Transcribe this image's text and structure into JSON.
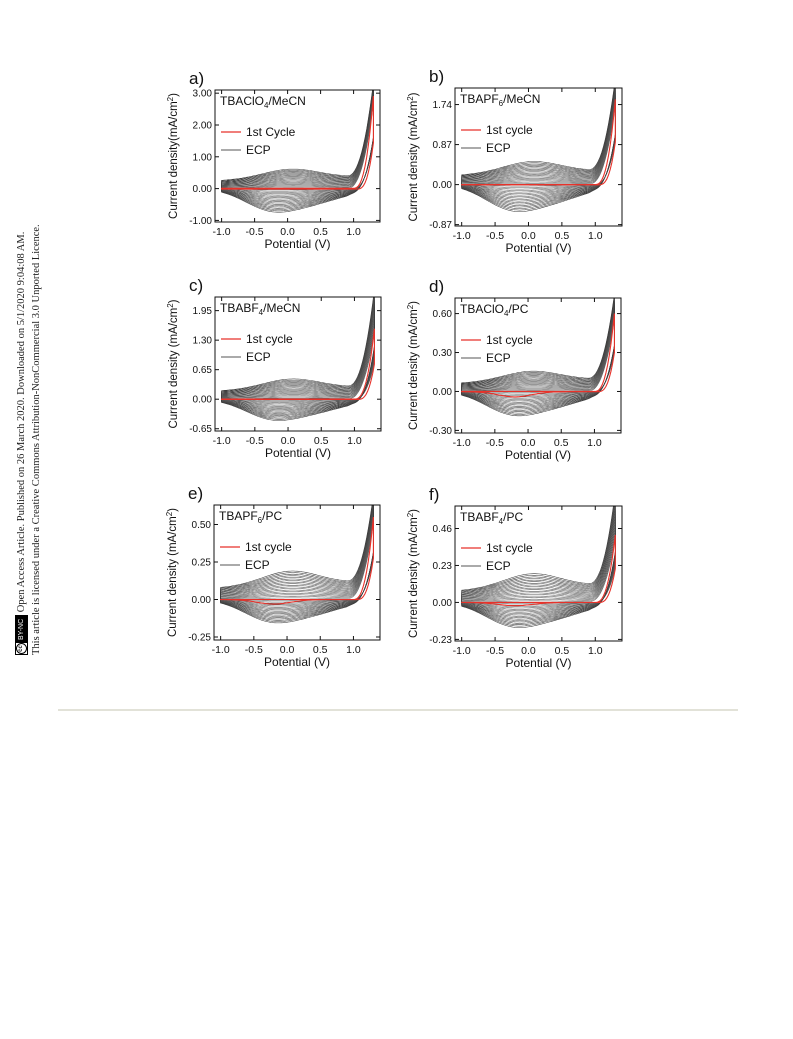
{
  "sidebar": {
    "line1_prefix": "Open Access Article. Published on 26 March 2020. Downloaded on 5/1/2020 9:04:08 AM.",
    "line2": "This article is licensed under a Creative Commons Attribution-NonCommercial 3.0 Unported Licence.",
    "cc_badge_label": "BY-NC",
    "cc_icon_text": "cc"
  },
  "colors": {
    "first_cycle": "#e8322a",
    "ecp": "#222222"
  },
  "chart_data": [
    {
      "type": "line",
      "panel_label": "a)",
      "electrolyte_main": "TBAClO",
      "electrolyte_sub": "4",
      "electrolyte_rest": "/MeCN",
      "xlabel": "Potential (V)",
      "ylabel": "Current density(mA/cm",
      "ylabel_sup": "2",
      "ylabel_end": ")",
      "xlim": [
        -1.1,
        1.4
      ],
      "ylim": [
        -1.05,
        3.1
      ],
      "xticks": [
        -1.0,
        -0.5,
        0.0,
        0.5,
        1.0
      ],
      "xtick_labels": [
        "-1.0",
        "-0.5",
        "0.0",
        "0.5",
        "1.0"
      ],
      "yticks": [
        -1.0,
        0.0,
        1.0,
        2.0,
        3.0
      ],
      "ytick_labels": [
        "-1.00",
        "0.00",
        "1.00",
        "2.00",
        "3.00"
      ],
      "legend": [
        "1st Cycle",
        "ECP"
      ],
      "legend_position": "upper-left",
      "series": [
        {
          "name": "1st Cycle",
          "x_start": -1.0,
          "x_end": 1.3,
          "anodic_offset": 0.08,
          "cathodic_offset": -0.12,
          "peak": 2.9,
          "hump": 0.0
        },
        {
          "name": "ECP",
          "cycles": 18,
          "x_start": -1.0,
          "x_end": 1.3,
          "peak_max": 2.95,
          "anodic_hump_max": 0.55,
          "cathodic_trough_min": -0.95
        }
      ]
    },
    {
      "type": "line",
      "panel_label": "b)",
      "electrolyte_main": "TBAPF",
      "electrolyte_sub": "6",
      "electrolyte_rest": "/MeCN",
      "xlabel": "Potential (V)",
      "ylabel": "Current density (mA/cm",
      "ylabel_sup": "2",
      "ylabel_end": ")",
      "xlim": [
        -1.1,
        1.4
      ],
      "ylim": [
        -0.9,
        2.1
      ],
      "xticks": [
        -1.0,
        -0.5,
        0.0,
        0.5,
        1.0
      ],
      "xtick_labels": [
        "-1.0",
        "-0.5",
        "0.0",
        "0.5",
        "1.0"
      ],
      "yticks": [
        -0.87,
        0.0,
        0.87,
        1.74
      ],
      "ytick_labels": [
        "-0.87",
        "0.00",
        "0.87",
        "1.74"
      ],
      "legend": [
        "1st cycle",
        "ECP"
      ],
      "legend_position": "upper-left",
      "series": [
        {
          "name": "1st cycle",
          "x_start": -1.0,
          "x_end": 1.3,
          "anodic_offset": 0.03,
          "cathodic_offset": -0.05,
          "peak": 1.85,
          "hump": 0.0
        },
        {
          "name": "ECP",
          "cycles": 18,
          "x_start": -1.0,
          "x_end": 1.3,
          "peak_max": 2.0,
          "anodic_hump_max": 0.45,
          "cathodic_trough_min": -0.75
        }
      ]
    },
    {
      "type": "line",
      "panel_label": "c)",
      "electrolyte_main": "TBABF",
      "electrolyte_sub": "4",
      "electrolyte_rest": "/MeCN",
      "xlabel": "Potential (V)",
      "ylabel": "Current density (mA/cm",
      "ylabel_sup": "2",
      "ylabel_end": ")",
      "xlim": [
        -1.1,
        1.4
      ],
      "ylim": [
        -0.7,
        2.25
      ],
      "xticks": [
        -1.0,
        -0.5,
        0.0,
        0.5,
        1.0
      ],
      "xtick_labels": [
        "-1.0",
        "-0.5",
        "0.0",
        "0.5",
        "1.0"
      ],
      "yticks": [
        -0.65,
        0.0,
        0.65,
        1.3,
        1.95
      ],
      "ytick_labels": [
        "-0.65",
        "0.00",
        "0.65",
        "1.30",
        "1.95"
      ],
      "legend": [
        "1st cycle",
        "ECP"
      ],
      "legend_position": "upper-left",
      "series": [
        {
          "name": "1st cycle",
          "x_start": -1.0,
          "x_end": 1.3,
          "anodic_offset": 0.03,
          "cathodic_offset": -0.05,
          "peak": 1.55,
          "hump": 0.0
        },
        {
          "name": "ECP",
          "cycles": 18,
          "x_start": -1.0,
          "x_end": 1.3,
          "peak_max": 2.15,
          "anodic_hump_max": 0.4,
          "cathodic_trough_min": -0.6
        }
      ]
    },
    {
      "type": "line",
      "panel_label": "d)",
      "electrolyte_main": "TBAClO",
      "electrolyte_sub": "4",
      "electrolyte_rest": "/PC",
      "xlabel": "Potential (V)",
      "ylabel": "Current density (mA/cm",
      "ylabel_sup": "2",
      "ylabel_end": ")",
      "xlim": [
        -1.1,
        1.4
      ],
      "ylim": [
        -0.32,
        0.72
      ],
      "xticks": [
        -1.0,
        -0.5,
        0.0,
        0.5,
        1.0
      ],
      "xtick_labels": [
        "-1.0",
        "-0.5",
        "0.0",
        "0.5",
        "1.0"
      ],
      "yticks": [
        -0.3,
        0.0,
        0.3,
        0.6
      ],
      "ytick_labels": [
        "-0.30",
        "0.00",
        "0.30",
        "0.60"
      ],
      "legend": [
        "1st cycle",
        "ECP"
      ],
      "legend_position": "upper-left",
      "series": [
        {
          "name": "1st cycle",
          "x_start": -1.0,
          "x_end": 1.3,
          "anodic_offset": 0.01,
          "cathodic_offset": -0.06,
          "peak": 0.6,
          "hump": -0.04
        },
        {
          "name": "ECP",
          "cycles": 18,
          "x_start": -1.0,
          "x_end": 1.3,
          "peak_max": 0.65,
          "anodic_hump_max": 0.14,
          "cathodic_trough_min": -0.24
        }
      ]
    },
    {
      "type": "line",
      "panel_label": "e)",
      "electrolyte_main": "TBAPF",
      "electrolyte_sub": "6",
      "electrolyte_rest": "/PC",
      "xlabel": "Potential (V)",
      "ylabel": "Current density (mA/cm",
      "ylabel_sup": "2",
      "ylabel_end": ")",
      "xlim": [
        -1.1,
        1.4
      ],
      "ylim": [
        -0.27,
        0.63
      ],
      "xticks": [
        -1.0,
        -0.5,
        0.0,
        0.5,
        1.0
      ],
      "xtick_labels": [
        "-1.0",
        "-0.5",
        "0.0",
        "0.5",
        "1.0"
      ],
      "yticks": [
        -0.25,
        0.0,
        0.25,
        0.5
      ],
      "ytick_labels": [
        "-0.25",
        "0.00",
        "0.25",
        "0.50"
      ],
      "legend": [
        "1st cycle",
        "ECP"
      ],
      "legend_position": "upper-left",
      "series": [
        {
          "name": "1st cycle",
          "x_start": -1.0,
          "x_end": 1.3,
          "anodic_offset": 0.005,
          "cathodic_offset": -0.02,
          "peak": 0.55,
          "hump": -0.03
        },
        {
          "name": "ECP",
          "cycles": 18,
          "x_start": -1.0,
          "x_end": 1.3,
          "peak_max": 0.58,
          "anodic_hump_max": 0.17,
          "cathodic_trough_min": -0.2
        }
      ]
    },
    {
      "type": "line",
      "panel_label": "f)",
      "electrolyte_main": "TBABF",
      "electrolyte_sub": "4",
      "electrolyte_rest": "/PC",
      "xlabel": "Potential (V)",
      "ylabel": "Current density (mA/cm",
      "ylabel_sup": "2",
      "ylabel_end": ")",
      "xlim": [
        -1.1,
        1.4
      ],
      "ylim": [
        -0.24,
        0.6
      ],
      "xticks": [
        -1.0,
        -0.5,
        0.0,
        0.5,
        1.0
      ],
      "xtick_labels": [
        "-1.0",
        "-0.5",
        "0.0",
        "0.5",
        "1.0"
      ],
      "yticks": [
        -0.23,
        0.0,
        0.23,
        0.46
      ],
      "ytick_labels": [
        "-0.23",
        "0.00",
        "0.23",
        "0.46"
      ],
      "legend": [
        "1st cycle",
        "ECP"
      ],
      "legend_position": "upper-left",
      "series": [
        {
          "name": "1st cycle",
          "x_start": -1.0,
          "x_end": 1.3,
          "anodic_offset": 0.005,
          "cathodic_offset": -0.02,
          "peak": 0.42,
          "hump": -0.02
        },
        {
          "name": "ECP",
          "cycles": 18,
          "x_start": -1.0,
          "x_end": 1.3,
          "peak_max": 0.58,
          "anodic_hump_max": 0.16,
          "cathodic_trough_min": -0.2
        }
      ]
    }
  ]
}
